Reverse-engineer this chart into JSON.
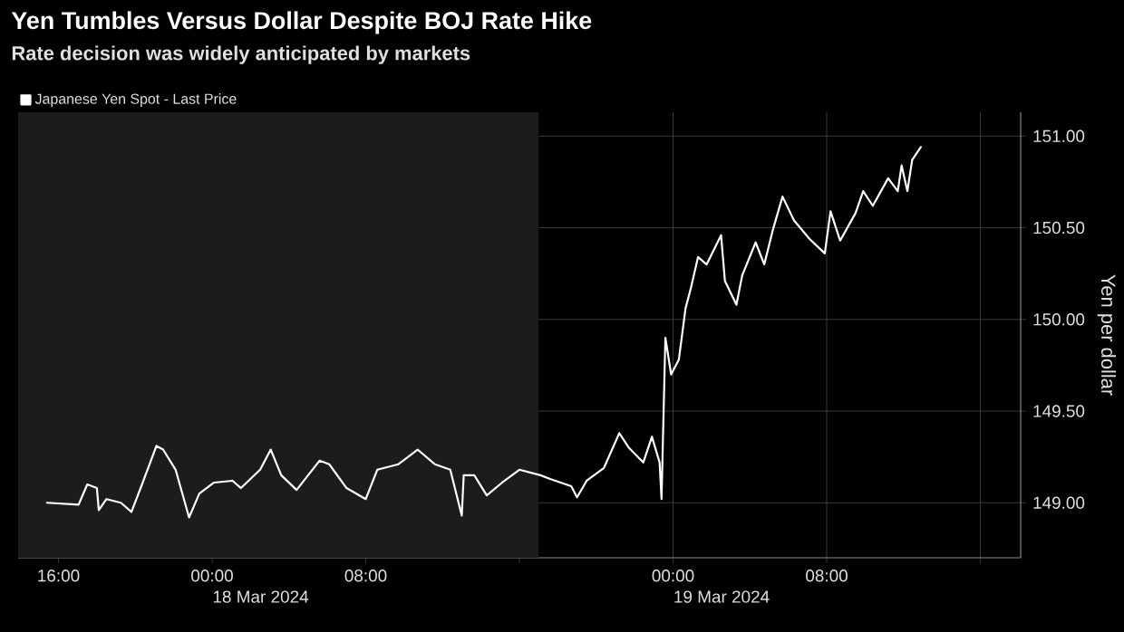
{
  "chart_data": {
    "type": "line",
    "title": "Yen Tumbles Versus Dollar Despite BOJ Rate Hike",
    "subtitle": "Rate decision was widely anticipated by markets",
    "ylabel": "Yen per dollar",
    "x": [
      "2024-03-17T15:24",
      "2024-03-17T17:03",
      "2024-03-17T17:30",
      "2024-03-17T18:00",
      "2024-03-17T18:06",
      "2024-03-17T18:30",
      "2024-03-17T19:15",
      "2024-03-17T19:48",
      "2024-03-17T20:21",
      "2024-03-17T21:06",
      "2024-03-17T21:27",
      "2024-03-17T22:06",
      "2024-03-17T22:48",
      "2024-03-17T23:20",
      "2024-03-18T00:06",
      "2024-03-18T01:04",
      "2024-03-18T01:30",
      "2024-03-18T02:30",
      "2024-03-18T03:03",
      "2024-03-18T03:36",
      "2024-03-18T04:24",
      "2024-03-18T04:51",
      "2024-03-18T05:36",
      "2024-03-18T06:06",
      "2024-03-18T07:00",
      "2024-03-18T08:00",
      "2024-03-18T08:36",
      "2024-03-18T09:42",
      "2024-03-18T10:42",
      "2024-03-18T11:36",
      "2024-03-18T12:24",
      "2024-03-18T13:00",
      "2024-03-18T13:06",
      "2024-03-18T13:39",
      "2024-03-18T14:18",
      "2024-03-18T15:06",
      "2024-03-18T16:00",
      "2024-03-18T17:06",
      "2024-03-18T17:36",
      "2024-03-18T18:42",
      "2024-03-18T19:00",
      "2024-03-18T19:30",
      "2024-03-18T20:24",
      "2024-03-18T21:12",
      "2024-03-18T21:42",
      "2024-03-18T22:27",
      "2024-03-18T22:54",
      "2024-03-18T23:18",
      "2024-03-18T23:24",
      "2024-03-18T23:36",
      "2024-03-18T23:54",
      "2024-03-19T00:18",
      "2024-03-19T00:39",
      "2024-03-19T00:57",
      "2024-03-19T01:18",
      "2024-03-19T01:45",
      "2024-03-19T02:30",
      "2024-03-19T02:42",
      "2024-03-19T03:18",
      "2024-03-19T03:36",
      "2024-03-19T04:18",
      "2024-03-19T04:45",
      "2024-03-19T05:12",
      "2024-03-19T05:42",
      "2024-03-19T06:18",
      "2024-03-19T07:06",
      "2024-03-19T07:54",
      "2024-03-19T08:12",
      "2024-03-19T08:42",
      "2024-03-19T09:30",
      "2024-03-19T09:54",
      "2024-03-19T10:24",
      "2024-03-19T11:12",
      "2024-03-19T11:42",
      "2024-03-19T11:54",
      "2024-03-19T12:12",
      "2024-03-19T12:27",
      "2024-03-19T12:54"
    ],
    "series": [
      {
        "name": "Japanese Yen Spot - Last Price",
        "color": "#ffffff",
        "values": [
          149.0,
          148.99,
          149.1,
          149.08,
          148.96,
          149.02,
          149.0,
          148.95,
          149.1,
          149.31,
          149.29,
          149.18,
          148.92,
          149.05,
          149.11,
          149.12,
          149.08,
          149.18,
          149.29,
          149.15,
          149.07,
          149.13,
          149.23,
          149.21,
          149.08,
          149.02,
          149.18,
          149.21,
          149.29,
          149.21,
          149.18,
          148.93,
          149.15,
          149.15,
          149.04,
          149.11,
          149.18,
          149.15,
          149.13,
          149.09,
          149.03,
          149.12,
          149.19,
          149.38,
          149.3,
          149.22,
          149.36,
          149.22,
          149.02,
          149.9,
          149.7,
          149.78,
          150.06,
          150.18,
          150.34,
          150.3,
          150.46,
          150.21,
          150.08,
          150.24,
          150.42,
          150.3,
          150.49,
          150.67,
          150.54,
          150.44,
          150.36,
          150.59,
          150.43,
          150.58,
          150.7,
          150.62,
          150.77,
          150.7,
          150.84,
          150.7,
          150.87,
          150.94
        ]
      }
    ],
    "xlim": [
      "2024-03-17T13:54",
      "2024-03-19T18:06"
    ],
    "ylim": [
      148.7,
      151.13
    ],
    "xticks": [
      {
        "value": "2024-03-17T16:00",
        "label": "16:00"
      },
      {
        "value": "2024-03-18T00:00",
        "label": "00:00"
      },
      {
        "value": "2024-03-18T08:00",
        "label": "08:00"
      },
      {
        "value": "2024-03-18T16:00",
        "label": null
      },
      {
        "value": "2024-03-19T00:00",
        "label": "00:00"
      },
      {
        "value": "2024-03-19T08:00",
        "label": "08:00"
      },
      {
        "value": "2024-03-19T16:00",
        "label": null
      }
    ],
    "yticks": [
      {
        "value": 149,
        "label": "149.00"
      },
      {
        "value": 149.5,
        "label": "149.50"
      },
      {
        "value": 150,
        "label": "150.00"
      },
      {
        "value": 150.5,
        "label": "150.50"
      },
      {
        "value": 151,
        "label": "151.00"
      }
    ],
    "grid": true,
    "legend": "top left",
    "bands": [
      {
        "axis": "x",
        "from": "2024-03-17T13:54",
        "to": "2024-03-18T17:00",
        "color": "#1c1c1c"
      }
    ],
    "annotations": [
      "18 Mar 2024",
      "19 Mar 2024"
    ]
  }
}
